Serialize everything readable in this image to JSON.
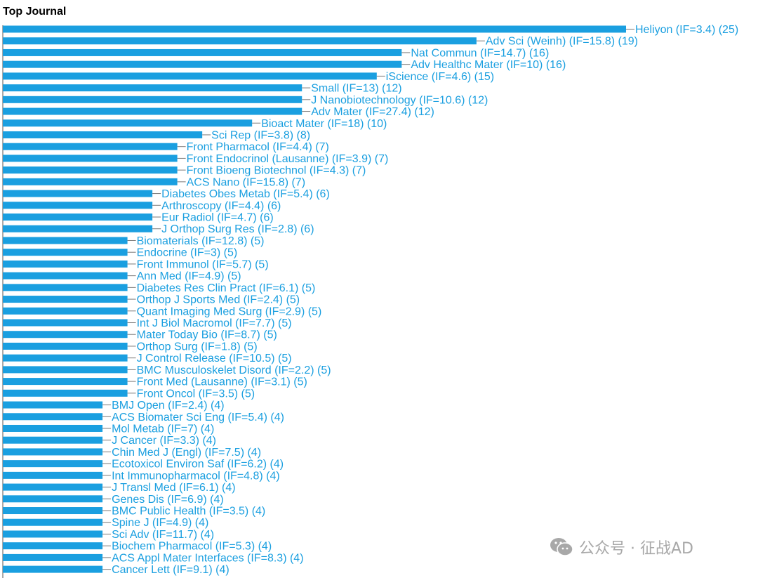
{
  "colors": {
    "bar": "#1a9fe0",
    "label": "#1a9fe0",
    "axis": "#555555"
  },
  "watermark": {
    "icon": "wechat-icon",
    "text": "公众号 · 征战AD"
  },
  "chart_data": {
    "type": "bar",
    "orientation": "horizontal",
    "title": "Top Journal",
    "xlim": [
      0,
      25
    ],
    "grid": false,
    "categories": [
      "Heliyon (IF=3.4) (25)",
      "Adv Sci (Weinh) (IF=15.8) (19)",
      "Nat Commun (IF=14.7) (16)",
      "Adv Healthc Mater (IF=10) (16)",
      "iScience (IF=4.6) (15)",
      "Small (IF=13) (12)",
      "J Nanobiotechnology (IF=10.6) (12)",
      "Adv Mater (IF=27.4) (12)",
      "Bioact Mater (IF=18) (10)",
      "Sci Rep (IF=3.8) (8)",
      "Front Pharmacol (IF=4.4) (7)",
      "Front Endocrinol (Lausanne) (IF=3.9) (7)",
      "Front Bioeng Biotechnol (IF=4.3) (7)",
      "ACS Nano (IF=15.8) (7)",
      "Diabetes Obes Metab (IF=5.4) (6)",
      "Arthroscopy (IF=4.4) (6)",
      "Eur Radiol (IF=4.7) (6)",
      "J Orthop Surg Res (IF=2.8) (6)",
      "Biomaterials (IF=12.8) (5)",
      "Endocrine (IF=3) (5)",
      "Front Immunol (IF=5.7) (5)",
      "Ann Med (IF=4.9) (5)",
      "Diabetes Res Clin Pract (IF=6.1) (5)",
      "Orthop J Sports Med (IF=2.4) (5)",
      "Quant Imaging Med Surg (IF=2.9) (5)",
      "Int J Biol Macromol (IF=7.7) (5)",
      "Mater Today Bio (IF=8.7) (5)",
      "Orthop Surg (IF=1.8) (5)",
      "J Control Release (IF=10.5) (5)",
      "BMC Musculoskelet Disord (IF=2.2) (5)",
      "Front Med (Lausanne) (IF=3.1) (5)",
      "Front Oncol (IF=3.5) (5)",
      "BMJ Open (IF=2.4) (4)",
      "ACS Biomater Sci Eng (IF=5.4) (4)",
      "Mol Metab (IF=7) (4)",
      "J Cancer (IF=3.3) (4)",
      "Chin Med J (Engl) (IF=7.5) (4)",
      "Ecotoxicol Environ Saf (IF=6.2) (4)",
      "Int Immunopharmacol (IF=4.8) (4)",
      "J Transl Med (IF=6.1) (4)",
      "Genes Dis (IF=6.9) (4)",
      "BMC Public Health (IF=3.5) (4)",
      "Spine J (IF=4.9) (4)",
      "Sci Adv (IF=11.7) (4)",
      "Biochem Pharmacol (IF=5.3) (4)",
      "ACS Appl Mater Interfaces (IF=8.3) (4)",
      "Cancer Lett (IF=9.1) (4)"
    ],
    "values": [
      25,
      19,
      16,
      16,
      15,
      12,
      12,
      12,
      10,
      8,
      7,
      7,
      7,
      7,
      6,
      6,
      6,
      6,
      5,
      5,
      5,
      5,
      5,
      5,
      5,
      5,
      5,
      5,
      5,
      5,
      5,
      5,
      4,
      4,
      4,
      4,
      4,
      4,
      4,
      4,
      4,
      4,
      4,
      4,
      4,
      4,
      4
    ]
  }
}
